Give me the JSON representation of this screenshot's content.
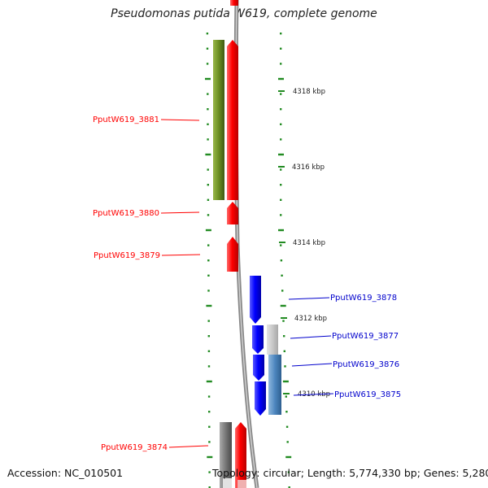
{
  "title": "Pseudomonas putida W619, complete genome",
  "footer": {
    "accession": "Accession: NC_010501",
    "summary": "Topology: circular; Length: 5,774,330 bp; Genes: 5,280"
  },
  "colors": {
    "background": "#ffffff",
    "backbone": "#888888",
    "cds_forward": "#ff0000",
    "cds_reverse": "#0000ff",
    "other_gene": "#6b8e23",
    "similarity": "#5a8fc0",
    "grey_feature": "#777777",
    "tick": "#228b22"
  },
  "kbp_ticks": [
    {
      "label": "4318 kbp"
    },
    {
      "label": "4316 kbp"
    },
    {
      "label": "4314 kbp"
    },
    {
      "label": "4312 kbp"
    },
    {
      "label": "4310 kbp"
    }
  ],
  "genes": [
    {
      "id": "PputW619_3881",
      "strand": "forward"
    },
    {
      "id": "PputW619_3880",
      "strand": "forward"
    },
    {
      "id": "PputW619_3879",
      "strand": "forward"
    },
    {
      "id": "PputW619_3878",
      "strand": "reverse"
    },
    {
      "id": "PputW619_3877",
      "strand": "reverse"
    },
    {
      "id": "PputW619_3876",
      "strand": "reverse"
    },
    {
      "id": "PputW619_3875",
      "strand": "reverse"
    },
    {
      "id": "PputW619_3874",
      "strand": "forward"
    }
  ]
}
